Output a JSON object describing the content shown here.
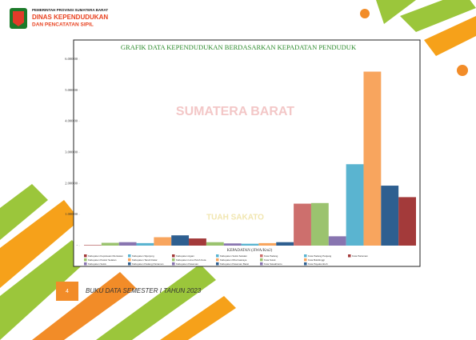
{
  "header": {
    "org": "PEMERINTAH PROVINSI SUMATERA BARAT",
    "dept_line1": "DINAS KEPENDUDUKAN",
    "dept_line2": "DAN PENCATATAN SIPIL"
  },
  "watermark": {
    "top": "SUMATERA BARAT",
    "bottom": "TUAH SAKATO"
  },
  "chart_data": {
    "type": "bar",
    "title": "GRAFIK DATA KEPENDUDUKAN  BERDASARKAN KEPADATAN PENDUDUK",
    "x_label": "KEPADATAN (JIWA/Km2)",
    "categories": [
      "Kabupaten Kepulauan Mentawai",
      "Kabupaten Pesisir Selatan",
      "Kabupaten Solok",
      "Kabupaten Sijunjung",
      "Kabupaten Tanah Datar",
      "Kabupaten Padang Pariaman",
      "Kabupaten Agam",
      "Kabupaten Lima Puluh Kota",
      "Kabupaten Pasaman",
      "Kabupaten Solok Selatan",
      "Kabupaten Dharmasraya",
      "Kabupaten Pasaman Barat",
      "Kota Padang",
      "Kota Solok",
      "Kota Sawahlunto",
      "Kota Padang Panjang",
      "Kota Bukittinggi",
      "Kota Payakumbuh",
      "Kota Pariaman"
    ],
    "values": [
      15,
      90,
      110,
      80,
      270,
      330,
      230,
      110,
      70,
      60,
      80,
      110,
      1350,
      1370,
      300,
      2620,
      5600,
      1930,
      1560
    ],
    "colors": [
      "#a33a3a",
      "#9bc36f",
      "#8875b0",
      "#5ab4d0",
      "#f8a55e",
      "#2e5f90",
      "#a33a3a",
      "#9bc36f",
      "#8875b0",
      "#5ab4d0",
      "#f8a55e",
      "#2e5f90",
      "#cd6f6d",
      "#9bc36f",
      "#8875b0",
      "#5ab4d0",
      "#f8a55e",
      "#2e5f90",
      "#a33a3a"
    ],
    "ylim": [
      0,
      6000
    ],
    "yticks": [
      {
        "value": 0,
        "label": "-"
      },
      {
        "value": 1000,
        "label": "1.000,00"
      },
      {
        "value": 2000,
        "label": "2.000,00"
      },
      {
        "value": 3000,
        "label": "3.000,00"
      },
      {
        "value": 4000,
        "label": "4.000,00"
      },
      {
        "value": 5000,
        "label": "5.000,00"
      },
      {
        "value": 6000,
        "label": "6.000,00"
      }
    ]
  },
  "footer": {
    "page": "4",
    "text": "BUKU DATA SEMESTER I TAHUN 2023"
  }
}
